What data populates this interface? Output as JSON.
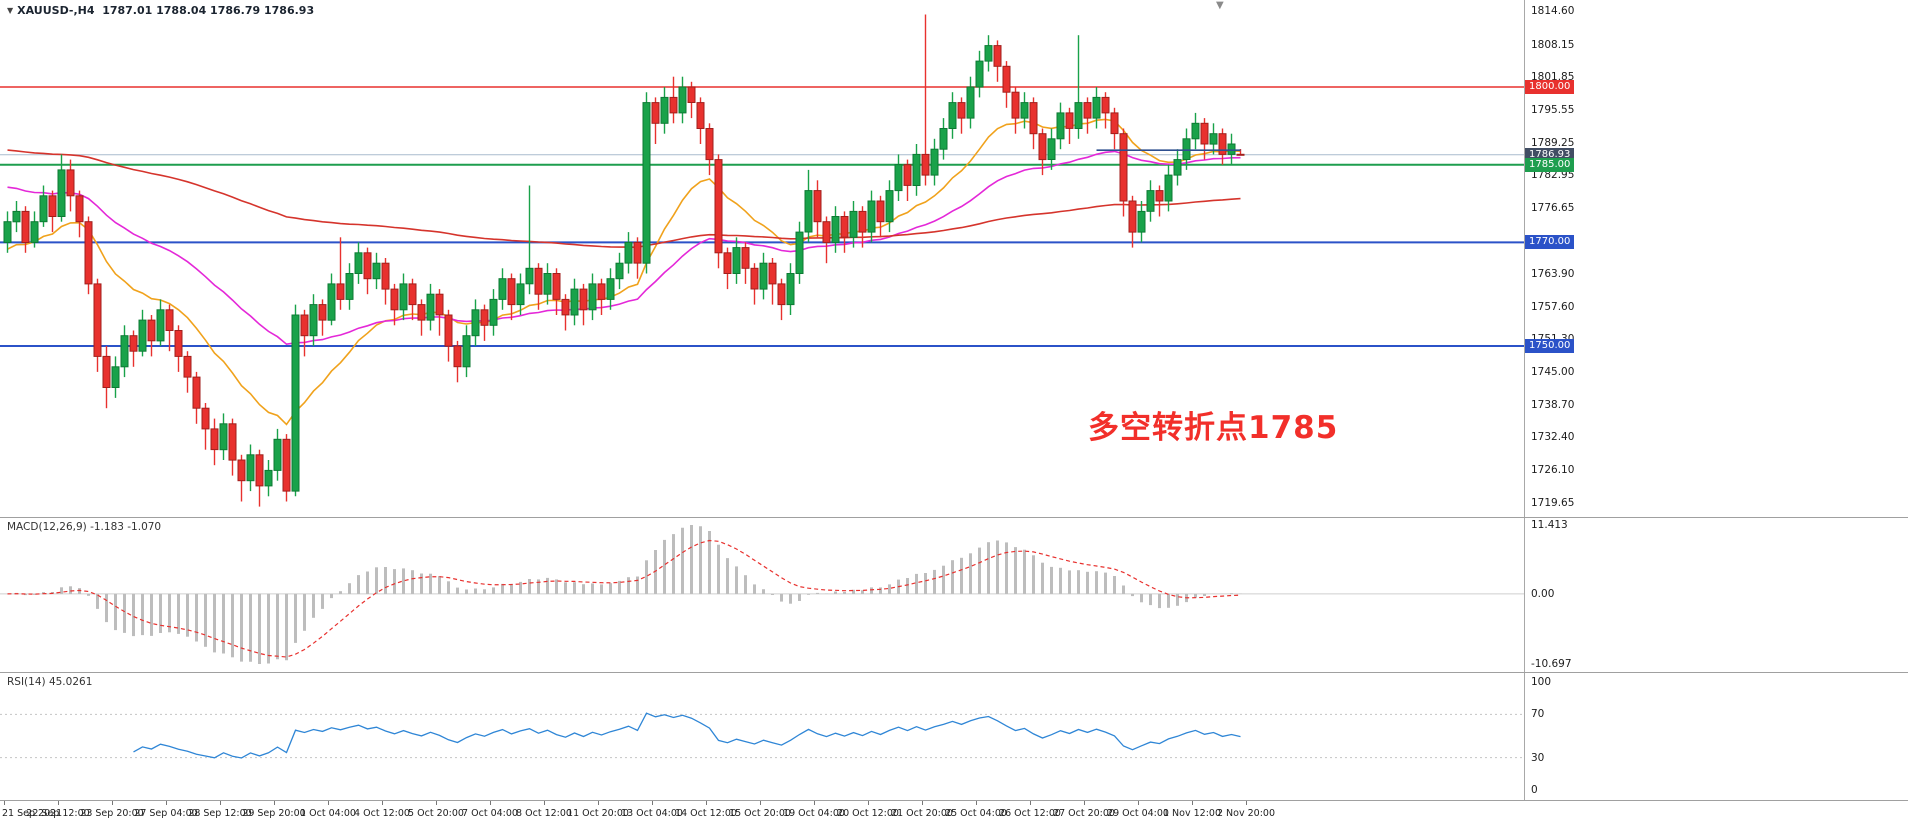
{
  "header": {
    "title": "XAUUSD-,H4  1787.01 1788.04 1786.79 1786.93",
    "dropdown_glyph": "▼"
  },
  "annotation": {
    "text": "多空转折点1785",
    "color": "#f22f2a"
  },
  "shift_marker_glyph": "▼",
  "price_axis": {
    "labels": [
      1814.6,
      1808.15,
      1801.85,
      1795.55,
      1789.25,
      1782.95,
      1776.65,
      1770.35,
      1763.9,
      1757.6,
      1751.3,
      1745.0,
      1738.7,
      1732.4,
      1726.1,
      1719.65
    ]
  },
  "price_tags": [
    {
      "price": 1800.0,
      "label": "1800.00",
      "color": "#e8312e"
    },
    {
      "price": 1786.93,
      "label": "1786.93",
      "color": "#414d63"
    },
    {
      "price": 1785.0,
      "label": "1785.00",
      "color": "#1e9e4e"
    },
    {
      "price": 1770.0,
      "label": "1770.00",
      "color": "#2b52c8"
    },
    {
      "price": 1750.0,
      "label": "1750.00",
      "color": "#2b52c8"
    }
  ],
  "hlines": [
    {
      "name": "resistance-line-1800",
      "price": 1800.0,
      "color": "#e8312e",
      "width": 1.4
    },
    {
      "name": "bid-price-line",
      "price": 1786.93,
      "color": "#a9bccd",
      "width": 1
    },
    {
      "name": "pivot-line-1785",
      "price": 1785.0,
      "color": "#1e9e4e",
      "width": 2
    },
    {
      "name": "support-line-1770",
      "price": 1770.0,
      "color": "#2b52c8",
      "width": 2
    },
    {
      "name": "support-line-1750",
      "price": 1750.0,
      "color": "#2b52c8",
      "width": 2
    }
  ],
  "segment_line": {
    "price": 1787.8,
    "from_bar": 121,
    "to_bar": 137,
    "color": "#2e4f8f"
  },
  "chart_data": {
    "type": "candlestick",
    "symbol": "XAUUSD-",
    "timeframe": "H4",
    "title": "XAUUSD-,H4 1787.01 1788.04 1786.79 1786.93",
    "price_range_visible": [
      1719.65,
      1814.6
    ],
    "time_labels": [
      "21 Sep 2021",
      "22 Sep 12:00",
      "23 Sep 20:00",
      "27 Sep 04:00",
      "28 Sep 12:00",
      "29 Sep 20:00",
      "1 Oct 04:00",
      "4 Oct 12:00",
      "5 Oct 20:00",
      "7 Oct 04:00",
      "8 Oct 12:00",
      "11 Oct 20:00",
      "13 Oct 04:00",
      "14 Oct 12:00",
      "15 Oct 20:00",
      "19 Oct 04:00",
      "20 Oct 12:00",
      "21 Oct 20:00",
      "25 Oct 04:00",
      "26 Oct 12:00",
      "27 Oct 20:00",
      "29 Oct 04:00",
      "1 Nov 12:00",
      "2 Nov 20:00"
    ],
    "bars_per_time_label": 6,
    "ohlc": [
      [
        1770,
        1776,
        1768,
        1774
      ],
      [
        1774,
        1778,
        1772,
        1776
      ],
      [
        1776,
        1777,
        1768,
        1770
      ],
      [
        1770,
        1776,
        1769,
        1774
      ],
      [
        1774,
        1781,
        1773,
        1779
      ],
      [
        1779,
        1780,
        1772,
        1775
      ],
      [
        1775,
        1787,
        1774,
        1784
      ],
      [
        1784,
        1786,
        1776,
        1779
      ],
      [
        1779,
        1780,
        1771,
        1774
      ],
      [
        1774,
        1775,
        1760,
        1762
      ],
      [
        1762,
        1763,
        1745,
        1748
      ],
      [
        1748,
        1750,
        1738,
        1742
      ],
      [
        1742,
        1748,
        1740,
        1746
      ],
      [
        1746,
        1754,
        1744,
        1752
      ],
      [
        1752,
        1753,
        1746,
        1749
      ],
      [
        1749,
        1757,
        1748,
        1755
      ],
      [
        1755,
        1756,
        1748,
        1751
      ],
      [
        1751,
        1759,
        1750,
        1757
      ],
      [
        1757,
        1758,
        1749,
        1753
      ],
      [
        1753,
        1754,
        1745,
        1748
      ],
      [
        1748,
        1749,
        1741,
        1744
      ],
      [
        1744,
        1745,
        1735,
        1738
      ],
      [
        1738,
        1739,
        1730,
        1734
      ],
      [
        1734,
        1736,
        1727,
        1730
      ],
      [
        1730,
        1737,
        1728,
        1735
      ],
      [
        1735,
        1736,
        1725,
        1728
      ],
      [
        1728,
        1729,
        1720,
        1724
      ],
      [
        1724,
        1731,
        1722,
        1729
      ],
      [
        1729,
        1730,
        1719,
        1723
      ],
      [
        1723,
        1728,
        1721,
        1726
      ],
      [
        1726,
        1734,
        1724,
        1732
      ],
      [
        1732,
        1733,
        1720,
        1722
      ],
      [
        1722,
        1758,
        1721,
        1756
      ],
      [
        1756,
        1757,
        1748,
        1752
      ],
      [
        1752,
        1760,
        1750,
        1758
      ],
      [
        1758,
        1759,
        1752,
        1755
      ],
      [
        1755,
        1764,
        1754,
        1762
      ],
      [
        1762,
        1771,
        1757,
        1759
      ],
      [
        1759,
        1766,
        1757,
        1764
      ],
      [
        1764,
        1770,
        1762,
        1768
      ],
      [
        1768,
        1769,
        1760,
        1763
      ],
      [
        1763,
        1768,
        1761,
        1766
      ],
      [
        1766,
        1767,
        1758,
        1761
      ],
      [
        1761,
        1762,
        1754,
        1757
      ],
      [
        1757,
        1764,
        1755,
        1762
      ],
      [
        1762,
        1763,
        1755,
        1758
      ],
      [
        1758,
        1759,
        1752,
        1755
      ],
      [
        1755,
        1762,
        1753,
        1760
      ],
      [
        1760,
        1761,
        1752,
        1756
      ],
      [
        1756,
        1757,
        1747,
        1750
      ],
      [
        1750,
        1751,
        1743,
        1746
      ],
      [
        1746,
        1754,
        1744,
        1752
      ],
      [
        1752,
        1759,
        1750,
        1757
      ],
      [
        1757,
        1758,
        1751,
        1754
      ],
      [
        1754,
        1761,
        1752,
        1759
      ],
      [
        1759,
        1765,
        1757,
        1763
      ],
      [
        1763,
        1764,
        1755,
        1758
      ],
      [
        1758,
        1764,
        1756,
        1762
      ],
      [
        1762,
        1781,
        1760,
        1765
      ],
      [
        1765,
        1766,
        1757,
        1760
      ],
      [
        1760,
        1766,
        1758,
        1764
      ],
      [
        1764,
        1765,
        1756,
        1759
      ],
      [
        1759,
        1760,
        1753,
        1756
      ],
      [
        1756,
        1763,
        1754,
        1761
      ],
      [
        1761,
        1762,
        1754,
        1757
      ],
      [
        1757,
        1764,
        1755,
        1762
      ],
      [
        1762,
        1763,
        1756,
        1759
      ],
      [
        1759,
        1765,
        1757,
        1763
      ],
      [
        1763,
        1768,
        1761,
        1766
      ],
      [
        1766,
        1772,
        1764,
        1770
      ],
      [
        1770,
        1771,
        1763,
        1766
      ],
      [
        1766,
        1799,
        1764,
        1797
      ],
      [
        1797,
        1798,
        1789,
        1793
      ],
      [
        1793,
        1800,
        1791,
        1798
      ],
      [
        1798,
        1802,
        1793,
        1795
      ],
      [
        1795,
        1802,
        1793,
        1800
      ],
      [
        1800,
        1801,
        1794,
        1797
      ],
      [
        1797,
        1798,
        1789,
        1792
      ],
      [
        1792,
        1793,
        1783,
        1786
      ],
      [
        1786,
        1787,
        1765,
        1768
      ],
      [
        1768,
        1769,
        1761,
        1764
      ],
      [
        1764,
        1771,
        1762,
        1769
      ],
      [
        1769,
        1770,
        1762,
        1765
      ],
      [
        1765,
        1766,
        1758,
        1761
      ],
      [
        1761,
        1768,
        1759,
        1766
      ],
      [
        1766,
        1767,
        1758,
        1762
      ],
      [
        1762,
        1763,
        1755,
        1758
      ],
      [
        1758,
        1766,
        1756,
        1764
      ],
      [
        1764,
        1774,
        1762,
        1772
      ],
      [
        1772,
        1784,
        1770,
        1780
      ],
      [
        1780,
        1782,
        1771,
        1774
      ],
      [
        1774,
        1775,
        1766,
        1770
      ],
      [
        1770,
        1777,
        1768,
        1775
      ],
      [
        1775,
        1776,
        1768,
        1771
      ],
      [
        1771,
        1778,
        1769,
        1776
      ],
      [
        1776,
        1777,
        1769,
        1772
      ],
      [
        1772,
        1780,
        1770,
        1778
      ],
      [
        1778,
        1779,
        1771,
        1774
      ],
      [
        1774,
        1782,
        1772,
        1780
      ],
      [
        1780,
        1787,
        1778,
        1785
      ],
      [
        1785,
        1786,
        1778,
        1781
      ],
      [
        1781,
        1789,
        1779,
        1787
      ],
      [
        1787,
        1814,
        1781,
        1783
      ],
      [
        1783,
        1790,
        1781,
        1788
      ],
      [
        1788,
        1794,
        1786,
        1792
      ],
      [
        1792,
        1799,
        1790,
        1797
      ],
      [
        1797,
        1798,
        1791,
        1794
      ],
      [
        1794,
        1802,
        1792,
        1800
      ],
      [
        1800,
        1807,
        1798,
        1805
      ],
      [
        1805,
        1810,
        1803,
        1808
      ],
      [
        1808,
        1809,
        1801,
        1804
      ],
      [
        1804,
        1805,
        1796,
        1799
      ],
      [
        1799,
        1800,
        1791,
        1794
      ],
      [
        1794,
        1799,
        1792,
        1797
      ],
      [
        1797,
        1798,
        1788,
        1791
      ],
      [
        1791,
        1792,
        1783,
        1786
      ],
      [
        1786,
        1792,
        1784,
        1790
      ],
      [
        1790,
        1797,
        1788,
        1795
      ],
      [
        1795,
        1796,
        1789,
        1792
      ],
      [
        1792,
        1810,
        1790,
        1797
      ],
      [
        1797,
        1798,
        1791,
        1794
      ],
      [
        1794,
        1800,
        1792,
        1798
      ],
      [
        1798,
        1799,
        1792,
        1795
      ],
      [
        1795,
        1796,
        1788,
        1791
      ],
      [
        1791,
        1792,
        1775,
        1778
      ],
      [
        1778,
        1779,
        1769,
        1772
      ],
      [
        1772,
        1778,
        1770,
        1776
      ],
      [
        1776,
        1782,
        1774,
        1780
      ],
      [
        1780,
        1781,
        1775,
        1778
      ],
      [
        1778,
        1785,
        1776,
        1783
      ],
      [
        1783,
        1788,
        1781,
        1786
      ],
      [
        1786,
        1792,
        1784,
        1790
      ],
      [
        1790,
        1795,
        1788,
        1793
      ],
      [
        1793,
        1794,
        1786,
        1789
      ],
      [
        1789,
        1793,
        1787,
        1791
      ],
      [
        1791,
        1792,
        1785,
        1787
      ],
      [
        1787,
        1791,
        1785,
        1789
      ],
      [
        1787.01,
        1788.04,
        1786.79,
        1786.93
      ]
    ],
    "up_color": "#19a24a",
    "down_color": "#e8312e",
    "overlays": [
      {
        "name": "ma-orange-line",
        "type": "ema",
        "period": 16,
        "seed": 1768,
        "color": "#f0a21c"
      },
      {
        "name": "ma-magenta-line",
        "type": "ema",
        "period": 40,
        "seed": 1781,
        "color": "#e428d8"
      },
      {
        "name": "ma-red-line",
        "type": "ema",
        "period": 160,
        "seed": 1788,
        "color": "#d5342c"
      }
    ],
    "indicators": [
      {
        "name": "MACD",
        "label": "MACD(12,26,9) -1.183 -1.070",
        "params": [
          12,
          26,
          9
        ],
        "current_values": [
          -1.183,
          -1.07
        ],
        "axis": [
          "11.413",
          "0.00",
          "-10.697"
        ],
        "histogram_color": "#bdbdbd",
        "signal_color": "#e8312e"
      },
      {
        "name": "RSI",
        "label": "RSI(14) 45.0261",
        "period": 14,
        "current_value": 45.0261,
        "axis": [
          "100",
          "70",
          "30",
          "0"
        ],
        "levels": [
          70,
          30
        ],
        "line_color": "#2f86d6"
      }
    ]
  }
}
